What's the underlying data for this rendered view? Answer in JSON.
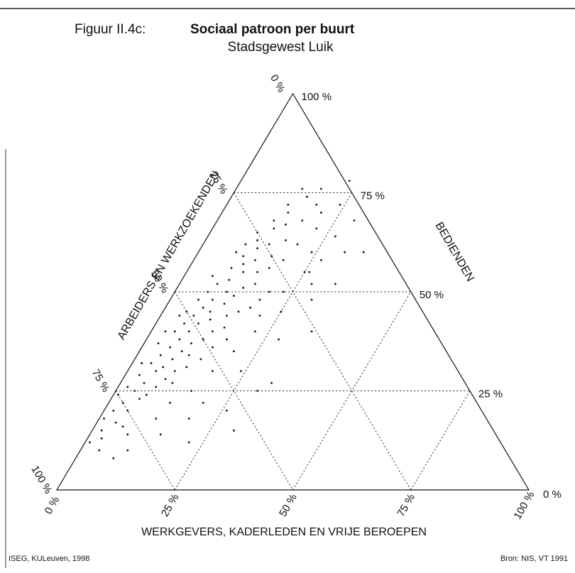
{
  "chart_data": {
    "type": "ternary",
    "figure_label": "Figuur II.4c:",
    "title": "Sociaal patroon per buurt",
    "subtitle": "Stadsgewest Luik",
    "credit": "ISEG, KULeuven, 1998",
    "source": "Bron: NIS, VT 1991",
    "grid": true,
    "color": "#111111",
    "axes": {
      "bottom": {
        "label": "WERKGEVERS, KADERLEDEN EN VRIJE BEROEPEN",
        "lim": [
          0,
          100
        ],
        "ticks": [
          {
            "value": 0,
            "label": "0 %"
          },
          {
            "value": 25,
            "label": "25 %"
          },
          {
            "value": 50,
            "label": "50 %"
          },
          {
            "value": 75,
            "label": "75 %"
          },
          {
            "value": 100,
            "label": "100 %"
          }
        ]
      },
      "right": {
        "label": "BEDIENDEN",
        "lim": [
          0,
          100
        ],
        "ticks": [
          {
            "value": 0,
            "label": "0 %"
          },
          {
            "value": 25,
            "label": "25 %"
          },
          {
            "value": 50,
            "label": "50 %"
          },
          {
            "value": 75,
            "label": "75 %"
          },
          {
            "value": 100,
            "label": "100 %"
          }
        ]
      },
      "left": {
        "label": "ARBEIDERS EN WERKZOEKENDEN",
        "lim": [
          0,
          100
        ],
        "ticks": [
          {
            "value": 0,
            "label": "0 %"
          },
          {
            "value": 25,
            "label": "25 %"
          },
          {
            "value": 50,
            "label": "50 %"
          },
          {
            "value": 75,
            "label": "75 %"
          },
          {
            "value": 100,
            "label": "100 %"
          }
        ]
      }
    },
    "x": [
      1,
      2,
      3,
      1,
      4,
      2,
      5,
      3,
      6,
      4,
      2,
      7,
      5,
      8,
      3,
      6,
      9,
      4,
      7,
      10,
      5,
      8,
      12,
      6,
      9,
      3,
      11,
      7,
      10,
      14,
      5,
      8,
      12,
      6,
      9,
      13,
      4,
      7,
      11,
      15,
      8,
      10,
      14,
      6,
      9,
      12,
      16,
      7,
      11,
      13,
      18,
      8,
      10,
      14,
      6,
      12,
      16,
      9,
      11,
      15,
      20,
      10,
      13,
      17,
      8,
      12,
      16,
      11,
      14,
      19,
      10,
      13,
      17,
      12,
      15,
      20,
      14,
      18,
      13,
      16,
      22,
      19,
      24,
      26,
      28,
      30,
      27,
      31,
      25,
      22,
      20,
      28,
      32,
      18,
      24,
      30,
      16,
      20,
      26,
      12,
      15,
      22,
      10,
      8,
      30,
      23,
      14,
      18,
      9,
      5,
      3,
      2,
      1,
      6,
      17,
      21,
      23,
      19,
      25,
      15,
      11,
      13,
      27,
      29,
      21,
      24,
      8,
      4,
      19,
      34,
      33,
      35
    ],
    "values": [
      12,
      15,
      13,
      18,
      17,
      20,
      20,
      22,
      23,
      25,
      26,
      24,
      27,
      26,
      29,
      30,
      28,
      32,
      31,
      30,
      34,
      33,
      31,
      36,
      35,
      37,
      34,
      38,
      37,
      33,
      40,
      40,
      38,
      42,
      42,
      40,
      44,
      44,
      43,
      41,
      46,
      45,
      44,
      48,
      48,
      47,
      45,
      50,
      50,
      49,
      46,
      52,
      53,
      51,
      54,
      55,
      52,
      56,
      57,
      55,
      50,
      59,
      58,
      56,
      60,
      61,
      59,
      63,
      62,
      58,
      65,
      66,
      63,
      68,
      67,
      62,
      70,
      68,
      72,
      74,
      66,
      72,
      60,
      55,
      52,
      48,
      58,
      60,
      45,
      40,
      35,
      38,
      27,
      30,
      30,
      25,
      25,
      22,
      20,
      18,
      14,
      12,
      10,
      14,
      15,
      78,
      76,
      76,
      62,
      45,
      40,
      32,
      24,
      16,
      38,
      44,
      50,
      48,
      55,
      36,
      27,
      22,
      64,
      68,
      70,
      72,
      8,
      10,
      18,
      40,
      52,
      60
    ]
  }
}
